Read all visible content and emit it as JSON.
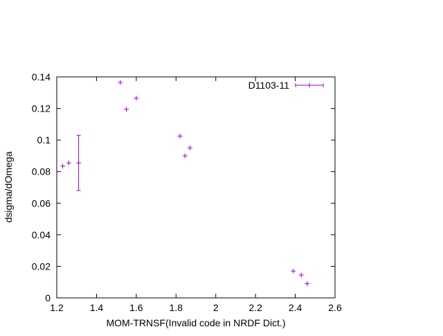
{
  "chart_data": {
    "type": "scatter",
    "xlabel": "MOM-TRNSF(Invalid code in NRDF Dict.)",
    "ylabel": "dsigma/dOmega",
    "xlim": [
      1.2,
      2.6
    ],
    "ylim": [
      0,
      0.14
    ],
    "xticks": [
      "1.2",
      "1.4",
      "1.6",
      "1.8",
      "2",
      "2.2",
      "2.4",
      "2.6"
    ],
    "yticks": [
      "0",
      "0.02",
      "0.04",
      "0.06",
      "0.08",
      "0.1",
      "0.12",
      "0.14"
    ],
    "xtick_values": [
      1.2,
      1.4,
      1.6,
      1.8,
      2.0,
      2.2,
      2.4,
      2.6
    ],
    "ytick_values": [
      0,
      0.02,
      0.04,
      0.06,
      0.08,
      0.1,
      0.12,
      0.14
    ],
    "grid": false,
    "legend_position": "top-right",
    "color": "#9400d3",
    "series": [
      {
        "name": "D1103-11",
        "points": [
          {
            "x": 1.23,
            "y": 0.0835
          },
          {
            "x": 1.26,
            "y": 0.0855
          },
          {
            "x": 1.31,
            "y": 0.0855,
            "err": 0.0175
          },
          {
            "x": 1.52,
            "y": 0.1365
          },
          {
            "x": 1.55,
            "y": 0.1195
          },
          {
            "x": 1.6,
            "y": 0.1265
          },
          {
            "x": 1.82,
            "y": 0.1025
          },
          {
            "x": 1.845,
            "y": 0.09
          },
          {
            "x": 1.87,
            "y": 0.095
          },
          {
            "x": 2.39,
            "y": 0.017
          },
          {
            "x": 2.43,
            "y": 0.0145
          },
          {
            "x": 2.46,
            "y": 0.009
          }
        ]
      }
    ]
  }
}
